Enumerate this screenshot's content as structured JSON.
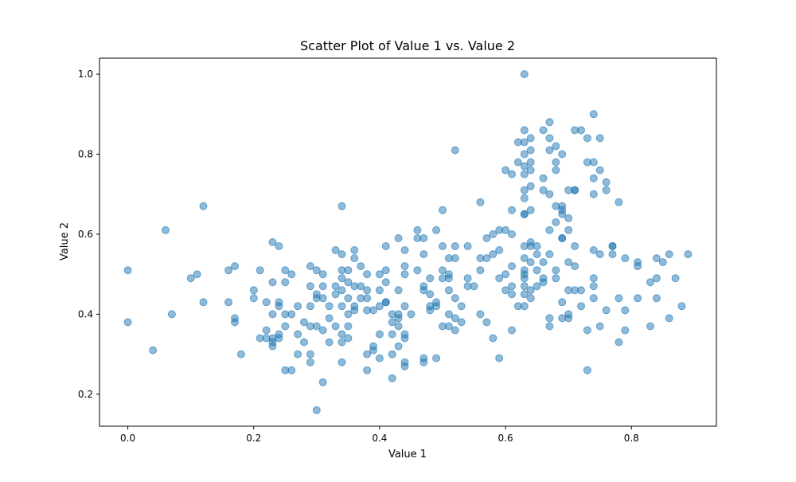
{
  "chart_data": {
    "type": "scatter",
    "title": "Scatter Plot of Value 1 vs. Value 2",
    "xlabel": "Value 1",
    "ylabel": "Value 2",
    "xlim": [
      -0.045,
      0.935
    ],
    "ylim": [
      0.12,
      1.04
    ],
    "xticks": [
      0.0,
      0.2,
      0.4,
      0.6,
      0.8
    ],
    "xtick_labels": [
      "0.0",
      "0.2",
      "0.4",
      "0.6",
      "0.8"
    ],
    "yticks": [
      0.2,
      0.4,
      0.6,
      0.8,
      1.0
    ],
    "ytick_labels": [
      "0.2",
      "0.4",
      "0.6",
      "0.8",
      "1.0"
    ],
    "grid": false,
    "marker_color": "#1f77b4",
    "marker_alpha": 0.5,
    "points": [
      [
        0.0,
        0.51
      ],
      [
        0.0,
        0.38
      ],
      [
        0.04,
        0.31
      ],
      [
        0.06,
        0.61
      ],
      [
        0.07,
        0.4
      ],
      [
        0.1,
        0.49
      ],
      [
        0.11,
        0.5
      ],
      [
        0.12,
        0.67
      ],
      [
        0.12,
        0.43
      ],
      [
        0.16,
        0.51
      ],
      [
        0.16,
        0.43
      ],
      [
        0.17,
        0.52
      ],
      [
        0.17,
        0.39
      ],
      [
        0.17,
        0.38
      ],
      [
        0.18,
        0.3
      ],
      [
        0.2,
        0.46
      ],
      [
        0.2,
        0.44
      ],
      [
        0.21,
        0.51
      ],
      [
        0.21,
        0.34
      ],
      [
        0.22,
        0.43
      ],
      [
        0.22,
        0.36
      ],
      [
        0.22,
        0.34
      ],
      [
        0.23,
        0.58
      ],
      [
        0.23,
        0.48
      ],
      [
        0.23,
        0.4
      ],
      [
        0.23,
        0.34
      ],
      [
        0.23,
        0.33
      ],
      [
        0.23,
        0.32
      ],
      [
        0.24,
        0.57
      ],
      [
        0.24,
        0.43
      ],
      [
        0.24,
        0.42
      ],
      [
        0.24,
        0.35
      ],
      [
        0.24,
        0.34
      ],
      [
        0.25,
        0.51
      ],
      [
        0.25,
        0.48
      ],
      [
        0.25,
        0.4
      ],
      [
        0.25,
        0.37
      ],
      [
        0.25,
        0.26
      ],
      [
        0.26,
        0.5
      ],
      [
        0.26,
        0.4
      ],
      [
        0.26,
        0.26
      ],
      [
        0.27,
        0.42
      ],
      [
        0.27,
        0.35
      ],
      [
        0.27,
        0.3
      ],
      [
        0.28,
        0.38
      ],
      [
        0.28,
        0.33
      ],
      [
        0.29,
        0.52
      ],
      [
        0.29,
        0.47
      ],
      [
        0.29,
        0.42
      ],
      [
        0.29,
        0.37
      ],
      [
        0.29,
        0.3
      ],
      [
        0.29,
        0.28
      ],
      [
        0.3,
        0.51
      ],
      [
        0.3,
        0.45
      ],
      [
        0.3,
        0.44
      ],
      [
        0.3,
        0.37
      ],
      [
        0.3,
        0.16
      ],
      [
        0.31,
        0.5
      ],
      [
        0.31,
        0.47
      ],
      [
        0.31,
        0.44
      ],
      [
        0.31,
        0.36
      ],
      [
        0.31,
        0.23
      ],
      [
        0.32,
        0.42
      ],
      [
        0.32,
        0.39
      ],
      [
        0.32,
        0.33
      ],
      [
        0.33,
        0.56
      ],
      [
        0.33,
        0.47
      ],
      [
        0.33,
        0.45
      ],
      [
        0.33,
        0.37
      ],
      [
        0.34,
        0.67
      ],
      [
        0.34,
        0.55
      ],
      [
        0.34,
        0.51
      ],
      [
        0.34,
        0.49
      ],
      [
        0.34,
        0.46
      ],
      [
        0.34,
        0.42
      ],
      [
        0.34,
        0.35
      ],
      [
        0.34,
        0.33
      ],
      [
        0.34,
        0.28
      ],
      [
        0.35,
        0.51
      ],
      [
        0.35,
        0.48
      ],
      [
        0.35,
        0.44
      ],
      [
        0.35,
        0.4
      ],
      [
        0.35,
        0.37
      ],
      [
        0.35,
        0.34
      ],
      [
        0.36,
        0.56
      ],
      [
        0.36,
        0.54
      ],
      [
        0.36,
        0.47
      ],
      [
        0.36,
        0.42
      ],
      [
        0.36,
        0.41
      ],
      [
        0.37,
        0.52
      ],
      [
        0.37,
        0.47
      ],
      [
        0.37,
        0.44
      ],
      [
        0.38,
        0.5
      ],
      [
        0.38,
        0.46
      ],
      [
        0.38,
        0.44
      ],
      [
        0.38,
        0.41
      ],
      [
        0.38,
        0.3
      ],
      [
        0.38,
        0.26
      ],
      [
        0.39,
        0.41
      ],
      [
        0.39,
        0.32
      ],
      [
        0.39,
        0.31
      ],
      [
        0.4,
        0.5
      ],
      [
        0.4,
        0.46
      ],
      [
        0.4,
        0.42
      ],
      [
        0.4,
        0.35
      ],
      [
        0.4,
        0.29
      ],
      [
        0.41,
        0.57
      ],
      [
        0.41,
        0.51
      ],
      [
        0.41,
        0.48
      ],
      [
        0.41,
        0.43
      ],
      [
        0.41,
        0.43
      ],
      [
        0.42,
        0.4
      ],
      [
        0.42,
        0.38
      ],
      [
        0.42,
        0.35
      ],
      [
        0.42,
        0.3
      ],
      [
        0.42,
        0.24
      ],
      [
        0.43,
        0.59
      ],
      [
        0.43,
        0.46
      ],
      [
        0.43,
        0.4
      ],
      [
        0.43,
        0.39
      ],
      [
        0.43,
        0.37
      ],
      [
        0.43,
        0.32
      ],
      [
        0.44,
        0.56
      ],
      [
        0.44,
        0.52
      ],
      [
        0.44,
        0.5
      ],
      [
        0.44,
        0.42
      ],
      [
        0.44,
        0.35
      ],
      [
        0.44,
        0.34
      ],
      [
        0.44,
        0.28
      ],
      [
        0.44,
        0.27
      ],
      [
        0.45,
        0.4
      ],
      [
        0.46,
        0.61
      ],
      [
        0.46,
        0.59
      ],
      [
        0.46,
        0.51
      ],
      [
        0.47,
        0.59
      ],
      [
        0.47,
        0.55
      ],
      [
        0.47,
        0.47
      ],
      [
        0.47,
        0.46
      ],
      [
        0.47,
        0.29
      ],
      [
        0.47,
        0.28
      ],
      [
        0.48,
        0.49
      ],
      [
        0.48,
        0.45
      ],
      [
        0.48,
        0.42
      ],
      [
        0.48,
        0.41
      ],
      [
        0.49,
        0.61
      ],
      [
        0.49,
        0.43
      ],
      [
        0.49,
        0.42
      ],
      [
        0.49,
        0.29
      ],
      [
        0.5,
        0.66
      ],
      [
        0.5,
        0.57
      ],
      [
        0.5,
        0.51
      ],
      [
        0.5,
        0.49
      ],
      [
        0.5,
        0.37
      ],
      [
        0.51,
        0.54
      ],
      [
        0.51,
        0.5
      ],
      [
        0.51,
        0.49
      ],
      [
        0.51,
        0.46
      ],
      [
        0.51,
        0.4
      ],
      [
        0.51,
        0.37
      ],
      [
        0.52,
        0.81
      ],
      [
        0.52,
        0.57
      ],
      [
        0.52,
        0.54
      ],
      [
        0.52,
        0.44
      ],
      [
        0.52,
        0.39
      ],
      [
        0.52,
        0.36
      ],
      [
        0.53,
        0.42
      ],
      [
        0.53,
        0.38
      ],
      [
        0.54,
        0.57
      ],
      [
        0.54,
        0.49
      ],
      [
        0.54,
        0.47
      ],
      [
        0.55,
        0.47
      ],
      [
        0.56,
        0.68
      ],
      [
        0.56,
        0.54
      ],
      [
        0.56,
        0.51
      ],
      [
        0.56,
        0.4
      ],
      [
        0.57,
        0.59
      ],
      [
        0.57,
        0.54
      ],
      [
        0.57,
        0.38
      ],
      [
        0.58,
        0.6
      ],
      [
        0.58,
        0.55
      ],
      [
        0.58,
        0.34
      ],
      [
        0.59,
        0.61
      ],
      [
        0.59,
        0.56
      ],
      [
        0.59,
        0.49
      ],
      [
        0.59,
        0.29
      ],
      [
        0.6,
        0.76
      ],
      [
        0.6,
        0.61
      ],
      [
        0.6,
        0.5
      ],
      [
        0.6,
        0.46
      ],
      [
        0.61,
        0.75
      ],
      [
        0.61,
        0.66
      ],
      [
        0.61,
        0.6
      ],
      [
        0.61,
        0.52
      ],
      [
        0.61,
        0.47
      ],
      [
        0.61,
        0.45
      ],
      [
        0.61,
        0.36
      ],
      [
        0.62,
        0.83
      ],
      [
        0.62,
        0.78
      ],
      [
        0.62,
        0.42
      ],
      [
        0.63,
        1.0
      ],
      [
        0.63,
        0.86
      ],
      [
        0.63,
        0.83
      ],
      [
        0.63,
        0.8
      ],
      [
        0.63,
        0.77
      ],
      [
        0.63,
        0.75
      ],
      [
        0.63,
        0.71
      ],
      [
        0.63,
        0.69
      ],
      [
        0.63,
        0.65
      ],
      [
        0.63,
        0.65
      ],
      [
        0.63,
        0.57
      ],
      [
        0.63,
        0.54
      ],
      [
        0.63,
        0.51
      ],
      [
        0.63,
        0.5
      ],
      [
        0.63,
        0.49
      ],
      [
        0.63,
        0.47
      ],
      [
        0.63,
        0.45
      ],
      [
        0.63,
        0.42
      ],
      [
        0.64,
        0.84
      ],
      [
        0.64,
        0.81
      ],
      [
        0.64,
        0.78
      ],
      [
        0.64,
        0.76
      ],
      [
        0.64,
        0.72
      ],
      [
        0.64,
        0.66
      ],
      [
        0.64,
        0.58
      ],
      [
        0.64,
        0.57
      ],
      [
        0.64,
        0.53
      ],
      [
        0.64,
        0.46
      ],
      [
        0.64,
        0.44
      ],
      [
        0.65,
        0.57
      ],
      [
        0.65,
        0.55
      ],
      [
        0.65,
        0.51
      ],
      [
        0.65,
        0.47
      ],
      [
        0.66,
        0.86
      ],
      [
        0.66,
        0.74
      ],
      [
        0.66,
        0.71
      ],
      [
        0.66,
        0.53
      ],
      [
        0.66,
        0.49
      ],
      [
        0.66,
        0.48
      ],
      [
        0.67,
        0.88
      ],
      [
        0.67,
        0.84
      ],
      [
        0.67,
        0.81
      ],
      [
        0.67,
        0.7
      ],
      [
        0.67,
        0.61
      ],
      [
        0.67,
        0.55
      ],
      [
        0.67,
        0.39
      ],
      [
        0.67,
        0.37
      ],
      [
        0.68,
        0.82
      ],
      [
        0.68,
        0.78
      ],
      [
        0.68,
        0.76
      ],
      [
        0.68,
        0.67
      ],
      [
        0.68,
        0.63
      ],
      [
        0.68,
        0.51
      ],
      [
        0.68,
        0.49
      ],
      [
        0.69,
        0.8
      ],
      [
        0.69,
        0.67
      ],
      [
        0.69,
        0.66
      ],
      [
        0.69,
        0.65
      ],
      [
        0.69,
        0.59
      ],
      [
        0.69,
        0.59
      ],
      [
        0.69,
        0.43
      ],
      [
        0.69,
        0.39
      ],
      [
        0.7,
        0.71
      ],
      [
        0.7,
        0.64
      ],
      [
        0.7,
        0.61
      ],
      [
        0.7,
        0.53
      ],
      [
        0.7,
        0.46
      ],
      [
        0.7,
        0.4
      ],
      [
        0.7,
        0.39
      ],
      [
        0.71,
        0.86
      ],
      [
        0.71,
        0.71
      ],
      [
        0.71,
        0.71
      ],
      [
        0.71,
        0.57
      ],
      [
        0.71,
        0.52
      ],
      [
        0.71,
        0.46
      ],
      [
        0.72,
        0.86
      ],
      [
        0.72,
        0.46
      ],
      [
        0.72,
        0.42
      ],
      [
        0.73,
        0.84
      ],
      [
        0.73,
        0.78
      ],
      [
        0.73,
        0.36
      ],
      [
        0.73,
        0.26
      ],
      [
        0.74,
        0.9
      ],
      [
        0.74,
        0.78
      ],
      [
        0.74,
        0.74
      ],
      [
        0.74,
        0.7
      ],
      [
        0.74,
        0.56
      ],
      [
        0.74,
        0.49
      ],
      [
        0.74,
        0.47
      ],
      [
        0.74,
        0.44
      ],
      [
        0.75,
        0.84
      ],
      [
        0.75,
        0.76
      ],
      [
        0.75,
        0.55
      ],
      [
        0.75,
        0.37
      ],
      [
        0.76,
        0.73
      ],
      [
        0.76,
        0.71
      ],
      [
        0.76,
        0.41
      ],
      [
        0.77,
        0.57
      ],
      [
        0.77,
        0.57
      ],
      [
        0.77,
        0.55
      ],
      [
        0.78,
        0.68
      ],
      [
        0.78,
        0.44
      ],
      [
        0.78,
        0.33
      ],
      [
        0.79,
        0.54
      ],
      [
        0.79,
        0.41
      ],
      [
        0.79,
        0.36
      ],
      [
        0.81,
        0.53
      ],
      [
        0.81,
        0.52
      ],
      [
        0.81,
        0.44
      ],
      [
        0.83,
        0.48
      ],
      [
        0.83,
        0.37
      ],
      [
        0.84,
        0.54
      ],
      [
        0.84,
        0.49
      ],
      [
        0.84,
        0.44
      ],
      [
        0.85,
        0.53
      ],
      [
        0.86,
        0.55
      ],
      [
        0.86,
        0.39
      ],
      [
        0.87,
        0.49
      ],
      [
        0.88,
        0.42
      ],
      [
        0.89,
        0.55
      ]
    ]
  }
}
